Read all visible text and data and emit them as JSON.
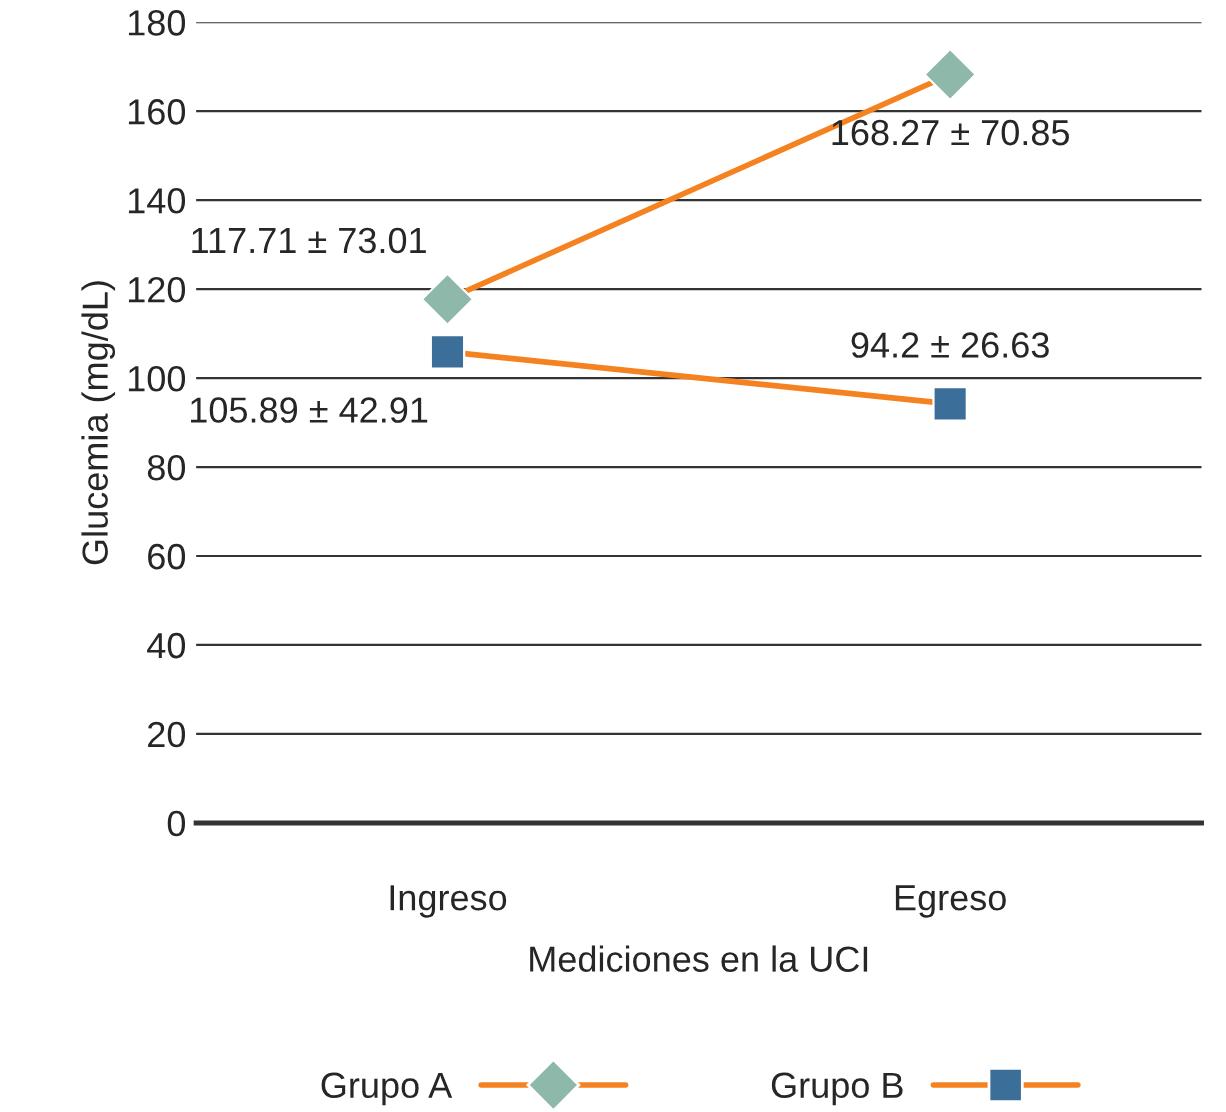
{
  "chart_data": {
    "type": "line",
    "xlabel": "Mediciones en la UCI",
    "ylabel": "Glucemia (mg/dL)",
    "categories": [
      "Ingreso",
      "Egreso"
    ],
    "series": [
      {
        "name": "Grupo A",
        "color": "#f58220",
        "colors": [
          "#8db8aa",
          "#8db8aa"
        ],
        "marker": "diamond",
        "values": [
          117.71,
          168.27
        ],
        "value_labels": [
          "117.71 ± 73.01",
          "168.27 ± 70.85"
        ]
      },
      {
        "name": "Grupo B",
        "color": "#f58220",
        "colors": [
          "#3b6e99",
          "#3b6e99"
        ],
        "marker": "square",
        "values": [
          105.89,
          94.2
        ],
        "value_labels": [
          "105.89 ± 42.91",
          "94.2 ± 26.63"
        ]
      }
    ],
    "ylim": [
      0,
      180
    ],
    "yticks": [
      0,
      20,
      40,
      60,
      80,
      100,
      120,
      140,
      160,
      180
    ],
    "grid": "y",
    "legend": "bottom",
    "line_style": "solid"
  }
}
